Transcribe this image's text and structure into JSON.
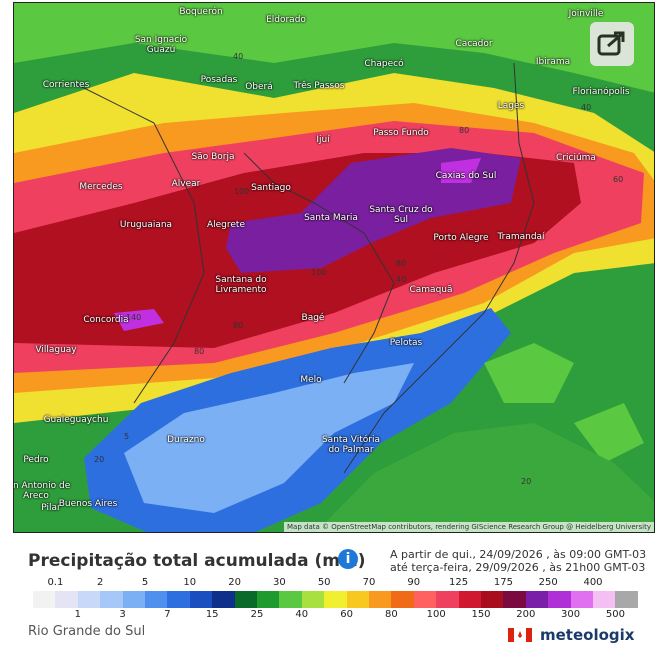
{
  "map": {
    "places": [
      "Boquerón",
      "Eldorado",
      "Joinville",
      "San Ignacio Guazú",
      "Cacador",
      "Chapecó",
      "Ibirama",
      "Posadas",
      "Oberá",
      "Três Passos",
      "Corrientes",
      "Florianópolis",
      "Lages",
      "Passo Fundo",
      "Ijuí",
      "São Borja",
      "Criciúma",
      "Mercedes",
      "Alvear",
      "Santiago",
      "Caxias do Sul",
      "Uruguaiana",
      "Alegrete",
      "Santa Maria",
      "Santa Cruz do Sul",
      "Porto Alegre",
      "Tramandaí",
      "Santana do Livramento",
      "Camaquã",
      "Bagé",
      "Concordia",
      "Villaguay",
      "Pelotas",
      "Melo",
      "Gualeguaychu",
      "Durazno",
      "Santa Vitória do Palmar",
      "Pedro",
      "San Antonio de Areco",
      "Pilar",
      "Buenos Aires"
    ],
    "contour_labels": [
      "40",
      "100",
      "80",
      "60",
      "80",
      "40",
      "100",
      "80",
      "140",
      "80",
      "5",
      "20",
      "40",
      "20"
    ],
    "attribution": "Map data © OpenStreetMap contributors, rendering GIScience Research Group @ Heidelberg University"
  },
  "legend": {
    "title": "Precipitação total acumulada (mm)",
    "period": [
      "A partir de qui., 24/09/2026 , às 09:00 GMT-03",
      "até terça-feira, 29/09/2026 , às 21h00 GMT-03"
    ],
    "top_labels": [
      "0.1",
      "2",
      "5",
      "10",
      "20",
      "30",
      "50",
      "70",
      "90",
      "125",
      "175",
      "250",
      "400"
    ],
    "bottom_labels": [
      "1",
      "3",
      "7",
      "15",
      "25",
      "40",
      "60",
      "80",
      "100",
      "150",
      "200",
      "300",
      "500"
    ],
    "colors": [
      "#f2f2f2",
      "#e4e4f4",
      "#c8d8f8",
      "#a6c8f8",
      "#7cb0f5",
      "#4f8fee",
      "#2e6fe0",
      "#1a4fc0",
      "#0e2f8a",
      "#0a6a2a",
      "#1e9a2e",
      "#5ac840",
      "#a8e040",
      "#f0f030",
      "#f8c820",
      "#f89a20",
      "#f06a18",
      "#ff6060",
      "#f04060",
      "#d01830",
      "#a80e1e",
      "#7a0a40",
      "#7a20a8",
      "#b030d8",
      "#e070f0",
      "#f4c0f4",
      "#a8a8a8"
    ]
  },
  "footer": {
    "region": "Rio Grande do Sul",
    "brand": "meteologix"
  }
}
